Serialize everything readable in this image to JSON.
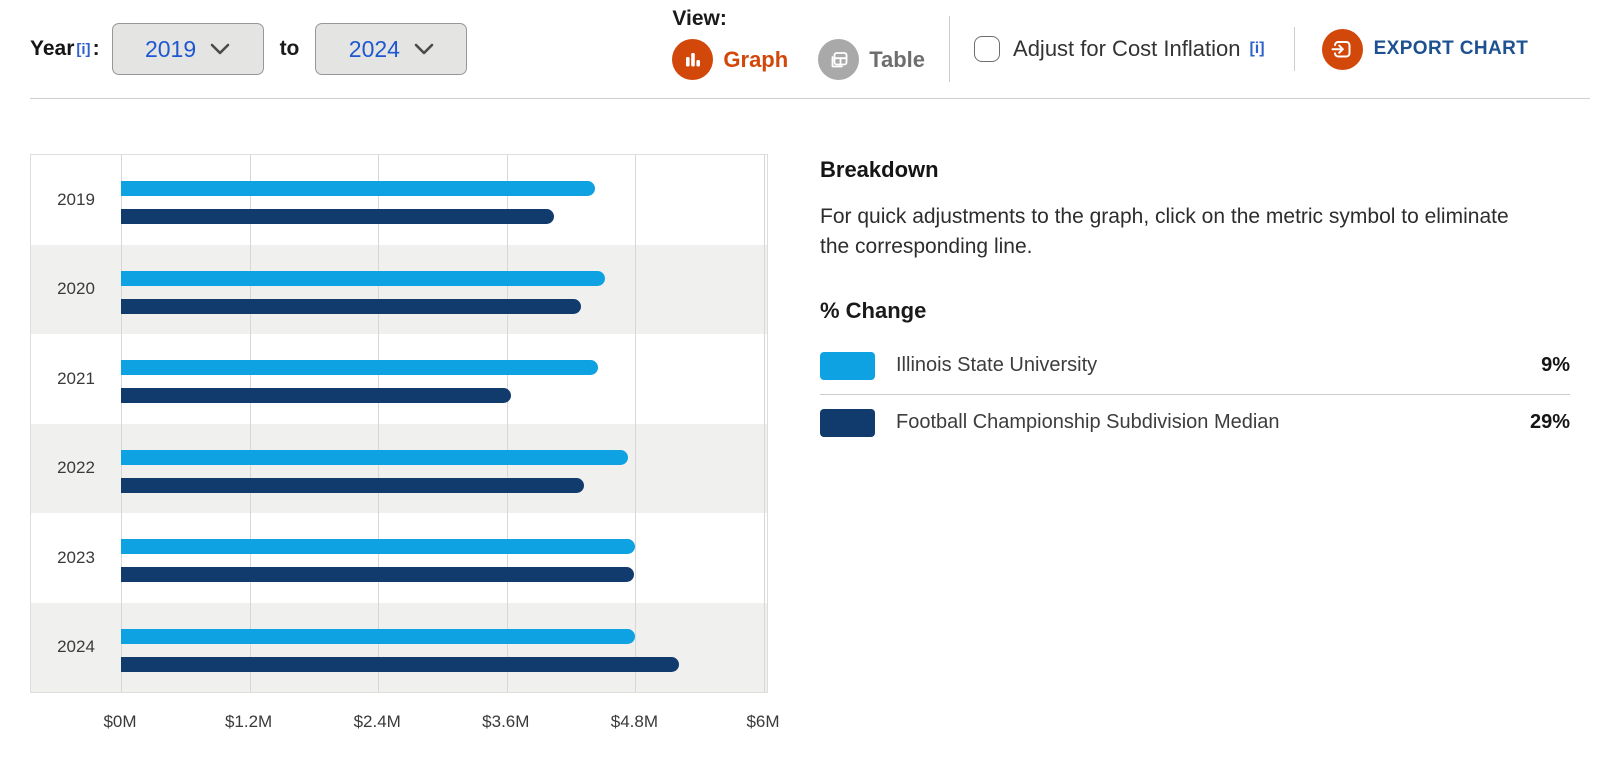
{
  "toolbar": {
    "year_label": "Year",
    "year_info": "[i]",
    "colon": ":",
    "year_from": "2019",
    "to_word": "to",
    "year_to": "2024",
    "view_label": "View:",
    "graph_label": "Graph",
    "table_label": "Table",
    "inflation_label": "Adjust for Cost Inflation",
    "inflation_info": "[i]",
    "export_label": "EXPORT CHART"
  },
  "breakdown": {
    "title": "Breakdown",
    "description": "For quick adjustments to the graph, click on the metric symbol to eliminate the corresponding line.",
    "pct_change_title": "% Change",
    "legend": [
      {
        "label": "Illinois State University",
        "pct_change": "9%",
        "color": "#0fa2e2"
      },
      {
        "label": "Football Championship Subdivision Median",
        "pct_change": "29%",
        "color": "#113a6d"
      }
    ]
  },
  "chart_data": {
    "type": "bar",
    "orientation": "horizontal",
    "categories": [
      "2019",
      "2020",
      "2021",
      "2022",
      "2023",
      "2024"
    ],
    "series": [
      {
        "name": "Illinois State University",
        "color": "#0fa2e2",
        "values": [
          4.42,
          4.52,
          4.45,
          4.73,
          4.8,
          4.8
        ]
      },
      {
        "name": "Football Championship Subdivision Median",
        "color": "#113a6d",
        "values": [
          4.04,
          4.29,
          3.64,
          4.32,
          4.79,
          5.21
        ]
      }
    ],
    "x_ticks": [
      "$0M",
      "$1.2M",
      "$2.4M",
      "$3.6M",
      "$4.8M",
      "$6M"
    ],
    "xlim": [
      0,
      6
    ],
    "unit": "$M",
    "grid": true,
    "row_banding": true
  },
  "colors": {
    "accent_orange": "#d2470a",
    "link_blue": "#1f57d1",
    "export_blue": "#1d5191",
    "band_gray": "#f0f0ee"
  }
}
